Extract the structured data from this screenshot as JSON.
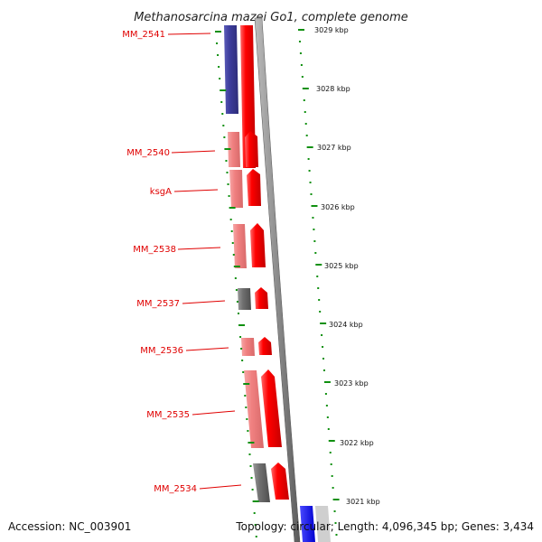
{
  "title": "Methanosarcina mazei Go1, complete genome",
  "accession_text": "Accession: NC_003901",
  "topology_text": "Topology: circular; Length: 4,096,345 bp; Genes: 3,434",
  "genes": [
    {
      "id": "MM_2541",
      "label": "MM_2541",
      "strand_color": "blue",
      "kind": "dark"
    },
    {
      "id": "MM_2540",
      "label": "MM_2540",
      "kind": "red"
    },
    {
      "id": "ksgA",
      "label": "ksgA",
      "kind": "red"
    },
    {
      "id": "MM_2538",
      "label": "MM_2538",
      "kind": "red"
    },
    {
      "id": "MM_2537",
      "label": "MM_2537",
      "kind": "grey"
    },
    {
      "id": "MM_2536",
      "label": "MM_2536",
      "kind": "red"
    },
    {
      "id": "MM_2535",
      "label": "MM_2535",
      "kind": "red"
    },
    {
      "id": "MM_2534",
      "label": "MM_2534",
      "kind": "grey"
    }
  ],
  "kbp_ticks": [
    "3029 kbp",
    "3028 kbp",
    "3027 kbp",
    "3026 kbp",
    "3025 kbp",
    "3024 kbp",
    "3023 kbp",
    "3022 kbp",
    "3021 kbp"
  ],
  "colors": {
    "label_red": "#e00000",
    "cds_red": "#ff0000",
    "cds_light_red": "#f08080",
    "cds_blue": "#3c3c9c",
    "cds_grey": "#7a7a7a",
    "tick_green": "#109010",
    "backbone_grey": "#8c8c8c"
  }
}
